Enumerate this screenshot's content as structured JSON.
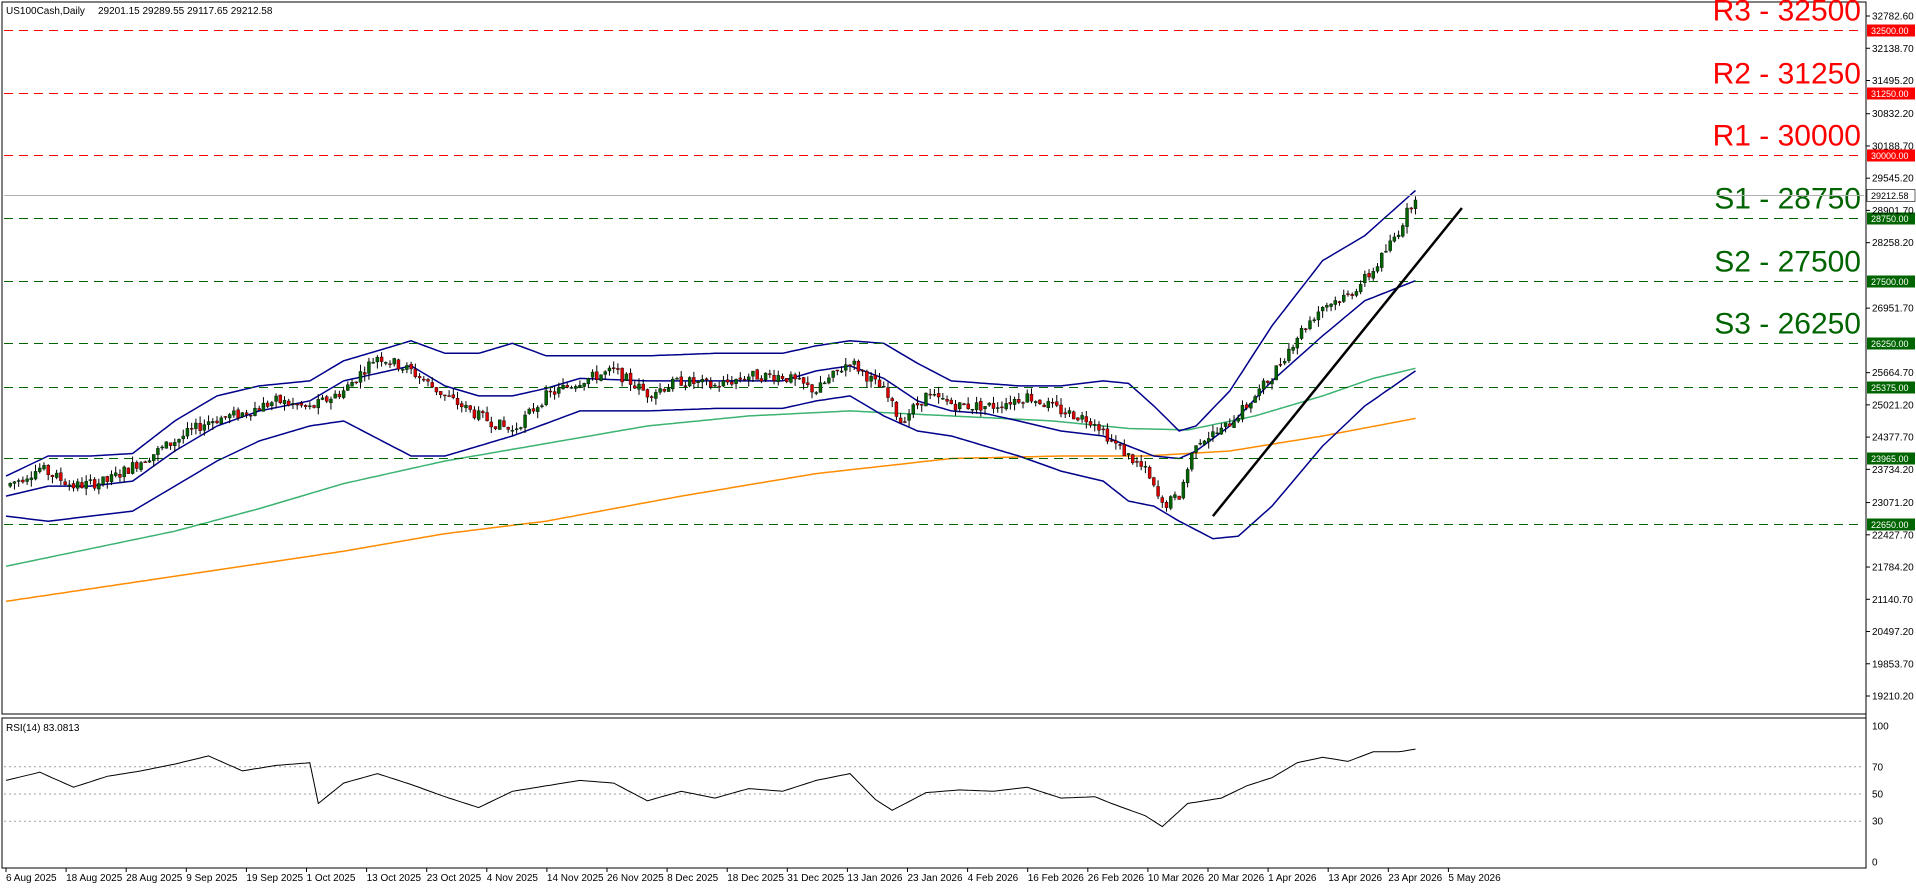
{
  "header": {
    "symbol": "US100Cash,Daily",
    "ohlc": "29201.15 29289.55 29117.65 29212.58"
  },
  "rsi": {
    "label": "RSI(14) 83.0813",
    "ticks": [
      "100",
      "70",
      "50",
      "30",
      "0"
    ]
  },
  "colors": {
    "resistance": "#ff0000",
    "support": "#006400",
    "bollinger": "#00008b",
    "ma_green": "#3cb371",
    "ma_orange": "#ff8c00",
    "bull": "#006400",
    "bear": "#dc0000",
    "trendline": "#000000"
  },
  "chart_data": {
    "type": "candlestick",
    "current_price": "29212.58",
    "ylim": [
      19210.2,
      32782.6
    ],
    "y_ticks": [
      "32782.60",
      "32138.70",
      "31495.20",
      "30832.20",
      "30188.70",
      "29545.20",
      "28901.70",
      "28258.20",
      "26951.70",
      "25664.70",
      "25021.20",
      "24377.70",
      "23734.20",
      "23071.20",
      "22427.70",
      "21784.20",
      "21140.70",
      "20497.20",
      "19853.70",
      "19210.20"
    ],
    "x_ticks": [
      "6 Aug 2025",
      "18 Aug 2025",
      "28 Aug 2025",
      "9 Sep 2025",
      "19 Sep 2025",
      "1 Oct 2025",
      "13 Oct 2025",
      "23 Oct 2025",
      "4 Nov 2025",
      "14 Nov 2025",
      "26 Nov 2025",
      "8 Dec 2025",
      "18 Dec 2025",
      "31 Dec 2025",
      "13 Jan 2026",
      "23 Jan 2026",
      "4 Feb 2026",
      "16 Feb 2026",
      "26 Feb 2026",
      "10 Mar 2026",
      "20 Mar 2026",
      "1 Apr 2026",
      "13 Apr 2026",
      "23 Apr 2026",
      "5 May 2026"
    ],
    "levels": [
      {
        "label": "R3 - 32500",
        "price": 32500,
        "tag": "32500.00",
        "kind": "resistance"
      },
      {
        "label": "R2 - 31250",
        "price": 31250,
        "tag": "31250.00",
        "kind": "resistance"
      },
      {
        "label": "R1 - 30000",
        "price": 30000,
        "tag": "30000.00",
        "kind": "resistance"
      },
      {
        "label": "S1 - 28750",
        "price": 28750,
        "tag": "28750.00",
        "kind": "support"
      },
      {
        "label": "S2 - 27500",
        "price": 27500,
        "tag": "27500.00",
        "kind": "support"
      },
      {
        "label": "S3 - 26250",
        "price": 26250,
        "tag": "26250.00",
        "kind": "support"
      },
      {
        "label": "",
        "price": 25375,
        "tag": "25375.00",
        "kind": "support"
      },
      {
        "label": "",
        "price": 23965,
        "tag": "23965.00",
        "kind": "support"
      },
      {
        "label": "",
        "price": 22650,
        "tag": "22650.00",
        "kind": "support"
      }
    ],
    "anchors": [
      [
        0,
        23400
      ],
      [
        8,
        23750
      ],
      [
        16,
        23400
      ],
      [
        24,
        23500
      ],
      [
        32,
        23900
      ],
      [
        40,
        24300
      ],
      [
        48,
        24700
      ],
      [
        56,
        24850
      ],
      [
        64,
        25100
      ],
      [
        72,
        24950
      ],
      [
        80,
        25300
      ],
      [
        88,
        26000
      ],
      [
        96,
        25700
      ],
      [
        104,
        25200
      ],
      [
        112,
        24800
      ],
      [
        120,
        24500
      ],
      [
        128,
        25200
      ],
      [
        136,
        25500
      ],
      [
        144,
        25700
      ],
      [
        152,
        25250
      ],
      [
        160,
        25500
      ],
      [
        168,
        25400
      ],
      [
        176,
        25600
      ],
      [
        184,
        25600
      ],
      [
        192,
        25300
      ],
      [
        200,
        25900
      ],
      [
        208,
        25300
      ],
      [
        212,
        24700
      ],
      [
        218,
        25200
      ],
      [
        226,
        25000
      ],
      [
        234,
        25000
      ],
      [
        242,
        25200
      ],
      [
        250,
        24900
      ],
      [
        258,
        24700
      ],
      [
        262,
        24300
      ],
      [
        270,
        23700
      ],
      [
        274,
        23000
      ],
      [
        278,
        23200
      ],
      [
        282,
        24300
      ],
      [
        288,
        24500
      ],
      [
        294,
        25000
      ],
      [
        300,
        25600
      ],
      [
        306,
        26400
      ],
      [
        312,
        27000
      ],
      [
        318,
        27200
      ],
      [
        324,
        27700
      ],
      [
        330,
        28500
      ],
      [
        334,
        29212
      ]
    ],
    "bb_upper_anchors": [
      [
        0,
        23600
      ],
      [
        10,
        24000
      ],
      [
        20,
        24000
      ],
      [
        30,
        24050
      ],
      [
        40,
        24700
      ],
      [
        50,
        25200
      ],
      [
        60,
        25400
      ],
      [
        72,
        25500
      ],
      [
        80,
        25900
      ],
      [
        96,
        26300
      ],
      [
        104,
        26050
      ],
      [
        112,
        26050
      ],
      [
        120,
        26250
      ],
      [
        128,
        26000
      ],
      [
        136,
        26000
      ],
      [
        152,
        26000
      ],
      [
        168,
        26050
      ],
      [
        184,
        26050
      ],
      [
        192,
        26200
      ],
      [
        200,
        26300
      ],
      [
        208,
        26250
      ],
      [
        216,
        25850
      ],
      [
        224,
        25500
      ],
      [
        232,
        25450
      ],
      [
        240,
        25400
      ],
      [
        250,
        25400
      ],
      [
        260,
        25500
      ],
      [
        266,
        25450
      ],
      [
        272,
        25000
      ],
      [
        278,
        24500
      ],
      [
        282,
        24600
      ],
      [
        290,
        25300
      ],
      [
        300,
        26600
      ],
      [
        312,
        27900
      ],
      [
        322,
        28400
      ],
      [
        334,
        29300
      ]
    ],
    "bb_middle_anchors": [
      [
        0,
        23200
      ],
      [
        10,
        23400
      ],
      [
        20,
        23400
      ],
      [
        30,
        23500
      ],
      [
        40,
        24100
      ],
      [
        50,
        24600
      ],
      [
        60,
        24900
      ],
      [
        72,
        25100
      ],
      [
        80,
        25500
      ],
      [
        96,
        25800
      ],
      [
        104,
        25400
      ],
      [
        112,
        25200
      ],
      [
        120,
        25200
      ],
      [
        128,
        25350
      ],
      [
        136,
        25550
      ],
      [
        152,
        25500
      ],
      [
        168,
        25500
      ],
      [
        184,
        25500
      ],
      [
        192,
        25700
      ],
      [
        200,
        25800
      ],
      [
        208,
        25550
      ],
      [
        216,
        25100
      ],
      [
        224,
        24900
      ],
      [
        232,
        24850
      ],
      [
        240,
        24700
      ],
      [
        250,
        24500
      ],
      [
        260,
        24400
      ],
      [
        266,
        24200
      ],
      [
        272,
        24000
      ],
      [
        278,
        23950
      ],
      [
        282,
        24100
      ],
      [
        290,
        24600
      ],
      [
        300,
        25500
      ],
      [
        312,
        26400
      ],
      [
        322,
        27100
      ],
      [
        334,
        27500
      ]
    ],
    "bb_lower_anchors": [
      [
        0,
        22800
      ],
      [
        10,
        22700
      ],
      [
        20,
        22800
      ],
      [
        30,
        22900
      ],
      [
        40,
        23400
      ],
      [
        50,
        23900
      ],
      [
        60,
        24300
      ],
      [
        72,
        24600
      ],
      [
        80,
        24700
      ],
      [
        96,
        24000
      ],
      [
        104,
        24000
      ],
      [
        112,
        24200
      ],
      [
        120,
        24400
      ],
      [
        128,
        24650
      ],
      [
        136,
        24900
      ],
      [
        152,
        24900
      ],
      [
        168,
        24950
      ],
      [
        184,
        24950
      ],
      [
        192,
        25100
      ],
      [
        200,
        25200
      ],
      [
        208,
        24800
      ],
      [
        216,
        24500
      ],
      [
        224,
        24400
      ],
      [
        232,
        24200
      ],
      [
        240,
        24000
      ],
      [
        250,
        23700
      ],
      [
        260,
        23500
      ],
      [
        266,
        23100
      ],
      [
        272,
        23000
      ],
      [
        278,
        22700
      ],
      [
        286,
        22350
      ],
      [
        292,
        22400
      ],
      [
        300,
        23000
      ],
      [
        312,
        24200
      ],
      [
        322,
        25000
      ],
      [
        334,
        25700
      ]
    ],
    "ma_green_anchors": [
      [
        0,
        21800
      ],
      [
        20,
        22150
      ],
      [
        40,
        22500
      ],
      [
        60,
        22950
      ],
      [
        80,
        23450
      ],
      [
        104,
        23900
      ],
      [
        128,
        24250
      ],
      [
        152,
        24600
      ],
      [
        176,
        24800
      ],
      [
        200,
        24900
      ],
      [
        224,
        24800
      ],
      [
        248,
        24700
      ],
      [
        266,
        24550
      ],
      [
        280,
        24520
      ],
      [
        296,
        24800
      ],
      [
        312,
        25200
      ],
      [
        324,
        25550
      ],
      [
        334,
        25750
      ]
    ],
    "ma_orange_anchors": [
      [
        0,
        21100
      ],
      [
        40,
        21600
      ],
      [
        80,
        22100
      ],
      [
        104,
        22450
      ],
      [
        128,
        22700
      ],
      [
        160,
        23200
      ],
      [
        192,
        23650
      ],
      [
        224,
        23950
      ],
      [
        250,
        24000
      ],
      [
        270,
        24000
      ],
      [
        290,
        24100
      ],
      [
        312,
        24400
      ],
      [
        334,
        24750
      ]
    ],
    "rsi_anchors": [
      [
        0,
        60
      ],
      [
        8,
        66
      ],
      [
        16,
        55
      ],
      [
        24,
        63
      ],
      [
        32,
        67
      ],
      [
        40,
        72
      ],
      [
        48,
        78
      ],
      [
        56,
        67
      ],
      [
        64,
        71
      ],
      [
        72,
        73
      ],
      [
        74,
        43
      ],
      [
        80,
        58
      ],
      [
        88,
        65
      ],
      [
        96,
        57
      ],
      [
        104,
        48
      ],
      [
        112,
        40
      ],
      [
        120,
        52
      ],
      [
        128,
        56
      ],
      [
        136,
        60
      ],
      [
        144,
        58
      ],
      [
        152,
        45
      ],
      [
        160,
        52
      ],
      [
        168,
        47
      ],
      [
        176,
        54
      ],
      [
        184,
        52
      ],
      [
        192,
        60
      ],
      [
        200,
        65
      ],
      [
        206,
        46
      ],
      [
        210,
        38
      ],
      [
        218,
        51
      ],
      [
        226,
        53
      ],
      [
        234,
        52
      ],
      [
        242,
        55
      ],
      [
        250,
        47
      ],
      [
        258,
        48
      ],
      [
        262,
        43
      ],
      [
        270,
        34
      ],
      [
        274,
        26
      ],
      [
        280,
        43
      ],
      [
        288,
        47
      ],
      [
        294,
        56
      ],
      [
        300,
        62
      ],
      [
        306,
        73
      ],
      [
        312,
        77
      ],
      [
        318,
        74
      ],
      [
        324,
        81
      ],
      [
        330,
        81
      ],
      [
        334,
        83
      ]
    ],
    "trendline": {
      "start": [
        286,
        22800
      ],
      "end": [
        345,
        28950
      ]
    }
  }
}
